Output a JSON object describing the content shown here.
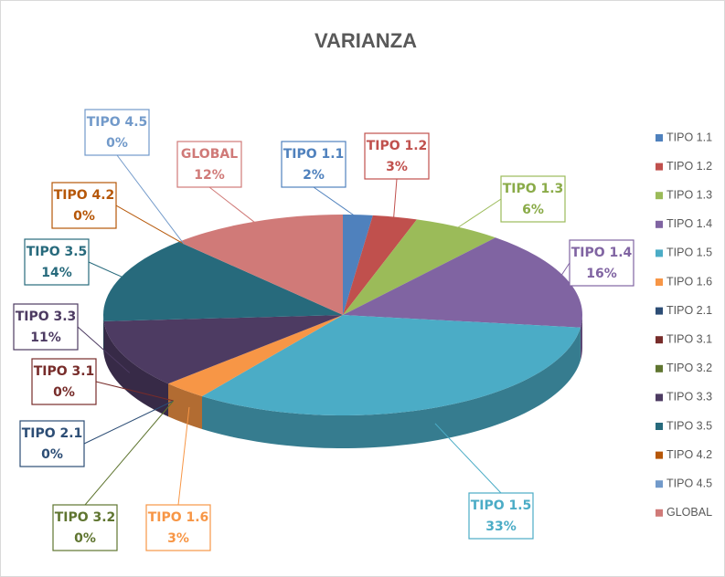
{
  "chart_data": {
    "type": "pie",
    "title": "VARIANZA",
    "categories": [
      "TIPO 1.1",
      "TIPO 1.2",
      "TIPO 1.3",
      "TIPO 1.4",
      "TIPO 1.5",
      "TIPO 1.6",
      "TIPO 2.1",
      "TIPO 3.1",
      "TIPO 3.2",
      "TIPO 3.3",
      "TIPO 3.5",
      "TIPO 4.2",
      "TIPO 4.5",
      "GLOBAL"
    ],
    "values": [
      2,
      3,
      6,
      16,
      33,
      3,
      0,
      0,
      0,
      11,
      14,
      0,
      0,
      12
    ],
    "value_labels": [
      "2%",
      "3%",
      "6%",
      "16%",
      "33%",
      "3%",
      "0%",
      "0%",
      "0%",
      "11%",
      "14%",
      "0%",
      "0%",
      "12%"
    ],
    "colors": [
      "#4f81bd",
      "#c0504d",
      "#9bbb59",
      "#8064a2",
      "#4bacc6",
      "#f79646",
      "#2c4d75",
      "#772c2a",
      "#5f7530",
      "#4d3b62",
      "#276a7c",
      "#b65708",
      "#729aca",
      "#d07a78"
    ],
    "legend": "right"
  }
}
